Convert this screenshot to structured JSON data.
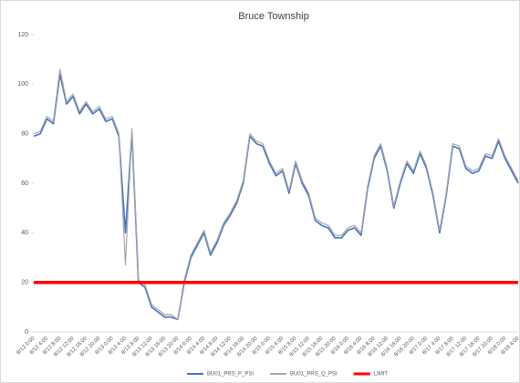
{
  "chart_data": {
    "type": "line",
    "title": "Bruce Township",
    "categories": [
      "8/12 0:00",
      null,
      "8/12 4:00",
      null,
      "8/12 8:00",
      null,
      "8/12 12:00",
      null,
      "8/12 16:00",
      null,
      "8/12 20:00",
      null,
      "8/13 0:00",
      null,
      "8/13 4:00",
      null,
      "8/13 8:00",
      null,
      "8/13 12:00",
      null,
      "8/13 16:00",
      null,
      "8/13 20:00",
      null,
      "8/14 0:00",
      null,
      "8/14 4:00",
      null,
      "8/14 8:00",
      null,
      "8/14 12:00",
      null,
      "8/14 16:00",
      null,
      "8/14 20:00",
      null,
      "8/15 0:00",
      null,
      "8/15 4:00",
      null,
      "8/15 8:00",
      null,
      "8/15 12:00",
      null,
      "8/15 16:00",
      null,
      "8/15 20:00",
      null,
      "8/16 0:00",
      null,
      "8/16 4:00",
      null,
      "8/16 8:00",
      null,
      "8/16 12:00",
      null,
      "8/16 16:00",
      null,
      "8/16 20:00",
      null,
      "8/17 0:00",
      null,
      "8/17 4:00",
      null,
      "8/17 8:00",
      null,
      "8/17 12:00",
      null,
      "8/17 16:00",
      null,
      "8/17 20:00",
      null,
      "8/18 0:00",
      null,
      "8/18 4:00"
    ],
    "series": [
      {
        "name": "BU01_PRS_P_PSI",
        "color": "#4472c4",
        "width": 1.6,
        "values": [
          79,
          80,
          86,
          84,
          104,
          92,
          95,
          88,
          92,
          88,
          90,
          85,
          86,
          79,
          40,
          80,
          20,
          18,
          10,
          8,
          6,
          6,
          5,
          20,
          30,
          35,
          40,
          31,
          36,
          43,
          47,
          52,
          60,
          79,
          76,
          75,
          68,
          63,
          65,
          56,
          68,
          60,
          55,
          45,
          43,
          42,
          38,
          38,
          41,
          42,
          39,
          58,
          70,
          75,
          65,
          50,
          60,
          68,
          64,
          72,
          66,
          55,
          40,
          55,
          75,
          74,
          66,
          64,
          65,
          71,
          70,
          77,
          70,
          65,
          60
        ]
      },
      {
        "name": "BU01_PRS_Q_PSI",
        "color": "#a5a5a5",
        "width": 1.2,
        "values": [
          80,
          81,
          87,
          85,
          106,
          93,
          96,
          89,
          93,
          89,
          91,
          86,
          87,
          80,
          27,
          82,
          21,
          19,
          11,
          9,
          7,
          7,
          5,
          21,
          31,
          36,
          41,
          32,
          37,
          44,
          48,
          53,
          61,
          80,
          77,
          76,
          69,
          64,
          66,
          57,
          69,
          61,
          56,
          46,
          44,
          43,
          39,
          39,
          42,
          43,
          40,
          59,
          71,
          76,
          66,
          51,
          61,
          69,
          65,
          73,
          67,
          56,
          41,
          56,
          76,
          75,
          67,
          65,
          66,
          72,
          71,
          78,
          71,
          66,
          61
        ]
      },
      {
        "name": "LIMIT",
        "color": "#ff0000",
        "width": 3.5,
        "values": [
          20,
          20,
          20,
          20,
          20,
          20,
          20,
          20,
          20,
          20,
          20,
          20,
          20,
          20,
          20,
          20,
          20,
          20,
          20,
          20,
          20,
          20,
          20,
          20,
          20,
          20,
          20,
          20,
          20,
          20,
          20,
          20,
          20,
          20,
          20,
          20,
          20,
          20,
          20,
          20,
          20,
          20,
          20,
          20,
          20,
          20,
          20,
          20,
          20,
          20,
          20,
          20,
          20,
          20,
          20,
          20,
          20,
          20,
          20,
          20,
          20,
          20,
          20,
          20,
          20,
          20,
          20,
          20,
          20,
          20,
          20,
          20,
          20,
          20,
          20
        ]
      }
    ],
    "ylim": [
      0,
      120
    ],
    "yticks": [
      0,
      20,
      40,
      60,
      80,
      100,
      120
    ],
    "grid": false,
    "legend": "bottom"
  }
}
